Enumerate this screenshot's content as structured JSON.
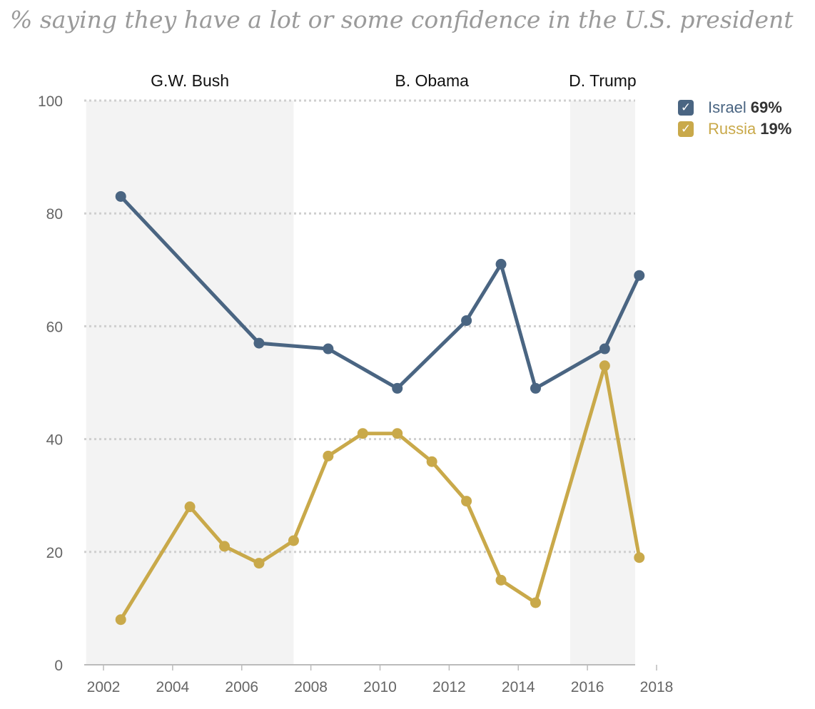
{
  "title": "% saying they have a lot or some confidence in the U.S. president",
  "chart_data": {
    "type": "line",
    "xlim": [
      2001.5,
      2018.5
    ],
    "ylim": [
      0,
      100
    ],
    "grid": true,
    "x_ticks": [
      2002,
      2004,
      2006,
      2008,
      2010,
      2012,
      2014,
      2016,
      2018
    ],
    "y_ticks": [
      0,
      20,
      40,
      60,
      80,
      100
    ],
    "presidencies": [
      {
        "label": "G.W. Bush",
        "start": 2001.5,
        "end": 2007.5,
        "shaded": true
      },
      {
        "label": "B. Obama",
        "start": 2007.5,
        "end": 2015.5,
        "shaded": false
      },
      {
        "label": "D. Trump",
        "start": 2015.5,
        "end": 2017.5,
        "shaded": true
      }
    ],
    "series": [
      {
        "name": "Israel",
        "latest": "69%",
        "color": "#4a6582",
        "x": [
          2002.5,
          2006.5,
          2008.5,
          2010.5,
          2012.5,
          2013.5,
          2014.5,
          2016.5,
          2017.5
        ],
        "y": [
          83,
          57,
          56,
          49,
          61,
          71,
          49,
          56,
          69
        ]
      },
      {
        "name": "Russia",
        "latest": "19%",
        "color": "#c9a94a",
        "x": [
          2002.5,
          2004.5,
          2005.5,
          2006.5,
          2007.5,
          2008.5,
          2009.5,
          2010.5,
          2011.5,
          2012.5,
          2013.5,
          2014.5,
          2016.5,
          2017.5
        ],
        "y": [
          8,
          28,
          21,
          18,
          22,
          37,
          41,
          41,
          36,
          29,
          15,
          11,
          53,
          19
        ]
      }
    ]
  }
}
